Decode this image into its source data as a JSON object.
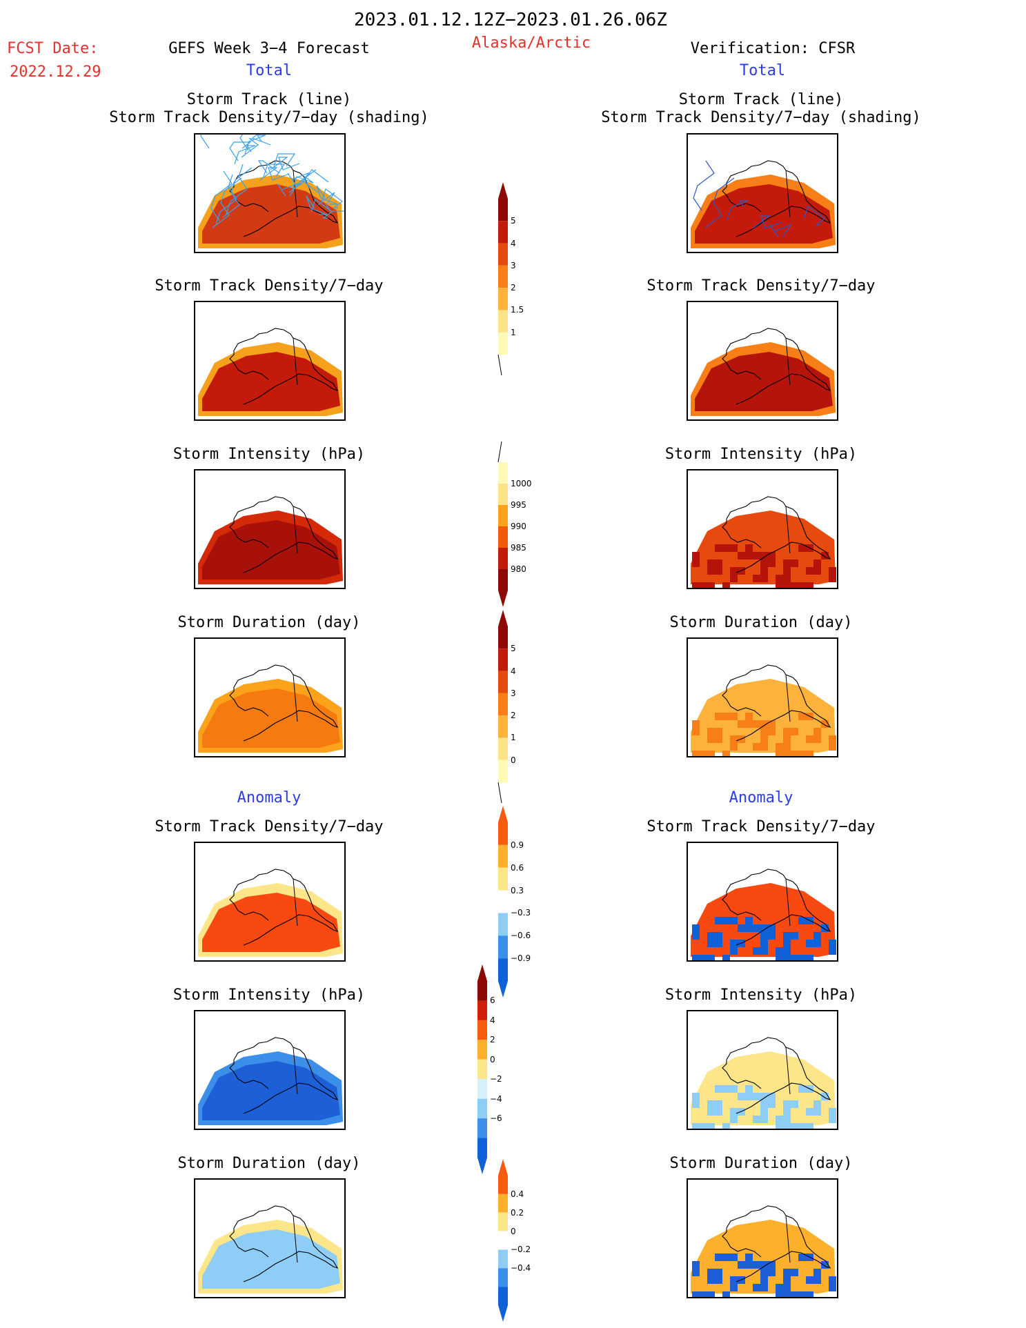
{
  "header": {
    "date_range": "2023.01.12.12Z−2023.01.26.06Z",
    "fcst_date_label": "FCST Date:",
    "fcst_date_value": "2022.12.29",
    "forecast_title": "GEFS Week 3−4 Forecast",
    "region": "Alaska/Arctic",
    "verification_title": "Verification: CFSR",
    "total_label": "Total",
    "anomaly_label": "Anomaly"
  },
  "panel_titles": {
    "track_line": "Storm Track (line)",
    "track_density_shading": "Storm Track Density/7−day (shading)",
    "track_density": "Storm Track Density/7−day",
    "intensity": "Storm Intensity (hPa)",
    "duration": "Storm Duration (day)"
  },
  "colors": {
    "title_red": "#e8302a",
    "title_blue": "#2a3cf0",
    "warm_scale": [
      "#fffbb4",
      "#fde28a",
      "#fdb23c",
      "#f87f17",
      "#e64a0f",
      "#c41a0a",
      "#8e0a05"
    ],
    "intensity_scale": [
      "#8e0a05",
      "#c41a0a",
      "#f35a0c",
      "#fca31b",
      "#fde28a",
      "#fffbb4"
    ],
    "anom_density_scale": [
      "#1060d8",
      "#3b8fe8",
      "#8ecdf6",
      "#ffffff",
      "#fde68a",
      "#fdb02c",
      "#f85a10"
    ],
    "anom_intensity_scale": [
      "#1060d8",
      "#3b8fe8",
      "#8ecdf6",
      "#d4f0fb",
      "#fde68a",
      "#fdb02c",
      "#f85a10",
      "#d0200a",
      "#8e0a05"
    ]
  },
  "colorbars": {
    "track_density": [
      "1",
      "1.5",
      "2",
      "3",
      "4",
      "5"
    ],
    "intensity": [
      "1000",
      "995",
      "990",
      "985",
      "980"
    ],
    "duration": [
      "0",
      "1",
      "2",
      "3",
      "4",
      "5"
    ],
    "anom_density": [
      "0.9",
      "0.6",
      "0.3",
      "−0.3",
      "−0.6",
      "−0.9"
    ],
    "anom_intensity": [
      "6",
      "4",
      "2",
      "0",
      "−2",
      "−4",
      "−6"
    ],
    "anom_duration": [
      "0.4",
      "0.2",
      "0",
      "−0.2",
      "−0.4"
    ]
  },
  "map_panels": {
    "gefs_total_track": {
      "dominant_fill": "#d13a12",
      "secondary_fill": "#f5a11c"
    },
    "gefs_total_density": {
      "dominant_fill": "#c41a0a",
      "secondary_fill": "#f5a11c"
    },
    "gefs_total_intensity": {
      "dominant_fill": "#a8100a",
      "secondary_fill": "#d42a0a"
    },
    "gefs_total_duration": {
      "dominant_fill": "#f57a0f",
      "secondary_fill": "#fca31b"
    },
    "cfsr_total_track": {
      "dominant_fill": "#c41a0a",
      "secondary_fill": "#f87f17"
    },
    "cfsr_total_density": {
      "dominant_fill": "#b5140a",
      "secondary_fill": "#f87f17"
    },
    "cfsr_total_intensity": {
      "dominant_fill": "#b5140a",
      "secondary_fill": "#e64a0f"
    },
    "cfsr_total_duration": {
      "dominant_fill": "#f87f17",
      "secondary_fill": "#fdb23c"
    },
    "gefs_anom_density": {
      "dominant_fill": "#f84a10",
      "secondary_fill": "#fde68a"
    },
    "gefs_anom_intensity": {
      "dominant_fill": "#1d5fd6",
      "secondary_fill": "#3b8fe8"
    },
    "gefs_anom_duration": {
      "dominant_fill": "#8ecdf6",
      "secondary_fill": "#fde68a"
    },
    "cfsr_anom_density": {
      "dominant_fill": "#1060d8",
      "secondary_fill": "#f84a10"
    },
    "cfsr_anom_intensity": {
      "dominant_fill": "#8ecdf6",
      "secondary_fill": "#fde68a"
    },
    "cfsr_anom_duration": {
      "dominant_fill": "#1d5fd6",
      "secondary_fill": "#fdb02c"
    }
  }
}
